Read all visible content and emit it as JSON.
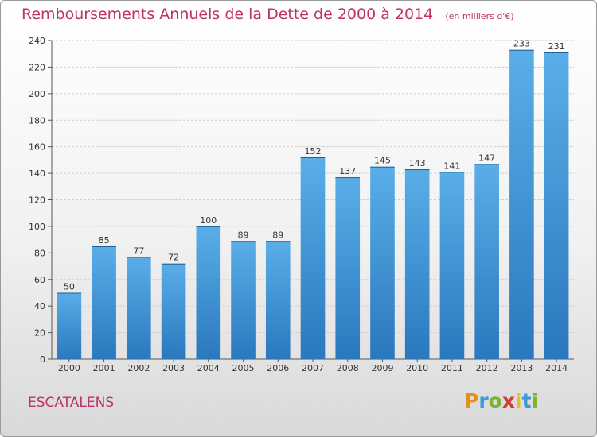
{
  "chart_data": {
    "type": "bar",
    "title": "Remboursements Annuels de la Dette de 2000 à 2014",
    "subtitle": "(en milliers d'€)",
    "categories": [
      "2000",
      "2001",
      "2002",
      "2003",
      "2004",
      "2005",
      "2006",
      "2007",
      "2008",
      "2009",
      "2010",
      "2011",
      "2012",
      "2013",
      "2014"
    ],
    "values": [
      50,
      85,
      77,
      72,
      100,
      89,
      89,
      152,
      137,
      145,
      143,
      141,
      147,
      233,
      231
    ],
    "ylim": [
      0,
      240
    ],
    "yticks": [
      0,
      20,
      40,
      60,
      80,
      100,
      120,
      140,
      160,
      180,
      200,
      220,
      240
    ],
    "grid": true,
    "xlabel": "",
    "ylabel": "",
    "bar_color": "#3d8fd6"
  },
  "location": "ESCATALENS",
  "brand": {
    "name": "Proxiti",
    "letters": [
      "P",
      "r",
      "o",
      "x",
      "i",
      "t",
      "i"
    ],
    "colors": [
      "#e6901c",
      "#3b9ad8",
      "#7ab532",
      "#d33a3a",
      "#e6c21c",
      "#3b9ad8",
      "#7ab532"
    ]
  }
}
